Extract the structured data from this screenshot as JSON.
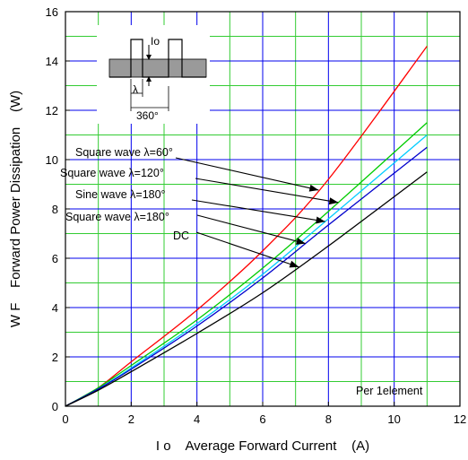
{
  "chart_data": {
    "type": "line",
    "xlabel": "I o    Average Forward Current    (A)",
    "ylabel": "W F    Forward Power Dissipation    (W)",
    "xlim": [
      0,
      12
    ],
    "ylim": [
      0,
      16
    ],
    "x_ticks": [
      "0",
      "2",
      "4",
      "6",
      "8",
      "10",
      "12"
    ],
    "y_ticks": [
      "0",
      "2",
      "4",
      "6",
      "8",
      "10",
      "12",
      "14",
      "16"
    ],
    "grid": "major lines blue, minor lines green",
    "note": "Per 1element",
    "inset": {
      "label_io": "Io",
      "label_lambda": "λ",
      "label_period": "360°"
    },
    "series": [
      {
        "name": "Square wave λ=60°",
        "color": "#ff0000",
        "x": [
          0,
          1,
          2,
          4,
          6,
          8,
          11
        ],
        "y": [
          0,
          0.75,
          1.8,
          3.9,
          6.3,
          9.2,
          14.6
        ]
      },
      {
        "name": "Square wave λ=120°",
        "color": "#00cc00",
        "x": [
          0,
          1,
          2,
          4,
          6,
          8,
          11
        ],
        "y": [
          0,
          0.75,
          1.65,
          3.5,
          5.6,
          7.9,
          11.5
        ]
      },
      {
        "name": "Sine wave λ=180°",
        "color": "#00ccff",
        "x": [
          0,
          1,
          2,
          4,
          6,
          8,
          11
        ],
        "y": [
          0,
          0.7,
          1.55,
          3.35,
          5.35,
          7.6,
          11.0
        ]
      },
      {
        "name": "Square wave λ=180°",
        "color": "#0000cc",
        "x": [
          0,
          1,
          2,
          4,
          6,
          8,
          11
        ],
        "y": [
          0,
          0.7,
          1.5,
          3.25,
          5.2,
          7.35,
          10.5
        ]
      },
      {
        "name": "DC",
        "color": "#000000",
        "x": [
          0,
          1,
          2,
          4,
          6,
          8,
          11
        ],
        "y": [
          0,
          0.65,
          1.4,
          2.95,
          4.6,
          6.5,
          9.5
        ]
      }
    ]
  }
}
